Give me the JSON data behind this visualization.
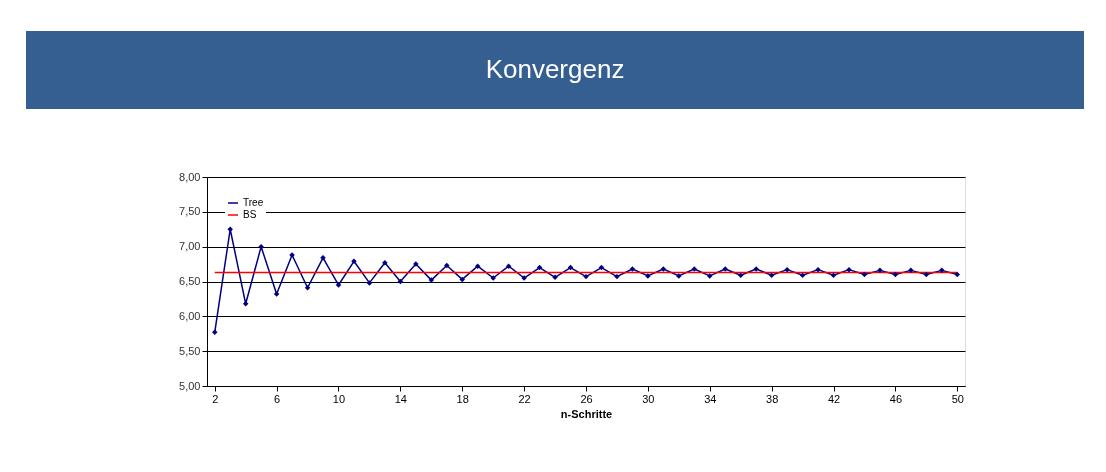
{
  "chart_data": {
    "type": "line",
    "title": "Konvergenz",
    "xlabel": "n-Schritte",
    "x": [
      2,
      3,
      4,
      5,
      6,
      7,
      8,
      9,
      10,
      11,
      12,
      13,
      14,
      15,
      16,
      17,
      18,
      19,
      20,
      21,
      22,
      23,
      24,
      25,
      26,
      27,
      28,
      29,
      30,
      31,
      32,
      33,
      34,
      35,
      36,
      37,
      38,
      39,
      40,
      41,
      42,
      43,
      44,
      45,
      46,
      47,
      48,
      49,
      50
    ],
    "series": [
      {
        "name": "Tree",
        "color": "#000080",
        "marker": "diamond",
        "values": [
          5.77,
          7.25,
          6.18,
          7.0,
          6.32,
          6.88,
          6.41,
          6.84,
          6.45,
          6.79,
          6.48,
          6.77,
          6.5,
          6.75,
          6.52,
          6.73,
          6.53,
          6.72,
          6.55,
          6.72,
          6.55,
          6.7,
          6.56,
          6.7,
          6.57,
          6.7,
          6.57,
          6.68,
          6.58,
          6.68,
          6.58,
          6.68,
          6.58,
          6.68,
          6.59,
          6.68,
          6.59,
          6.67,
          6.59,
          6.67,
          6.59,
          6.67,
          6.6,
          6.66,
          6.6,
          6.66,
          6.6,
          6.66,
          6.6
        ]
      },
      {
        "name": "BS",
        "color": "#ff0000",
        "marker": "none",
        "x": [
          2,
          50
        ],
        "values": [
          6.63,
          6.63
        ]
      }
    ],
    "xlim": [
      1.5,
      50.5
    ],
    "xticks": [
      2,
      6,
      10,
      14,
      18,
      22,
      26,
      30,
      34,
      38,
      42,
      46,
      50
    ],
    "ylim": [
      5,
      8
    ],
    "yticks": [
      {
        "value": 5,
        "label": "5,00"
      },
      {
        "value": 5.5,
        "label": "5,50"
      },
      {
        "value": 6,
        "label": "6,00"
      },
      {
        "value": 6.5,
        "label": "6,50"
      },
      {
        "value": 7,
        "label": "7,00"
      },
      {
        "value": 7.5,
        "label": "7,50"
      },
      {
        "value": 8,
        "label": "8,00"
      }
    ],
    "grid": "y",
    "legend": "top left"
  }
}
